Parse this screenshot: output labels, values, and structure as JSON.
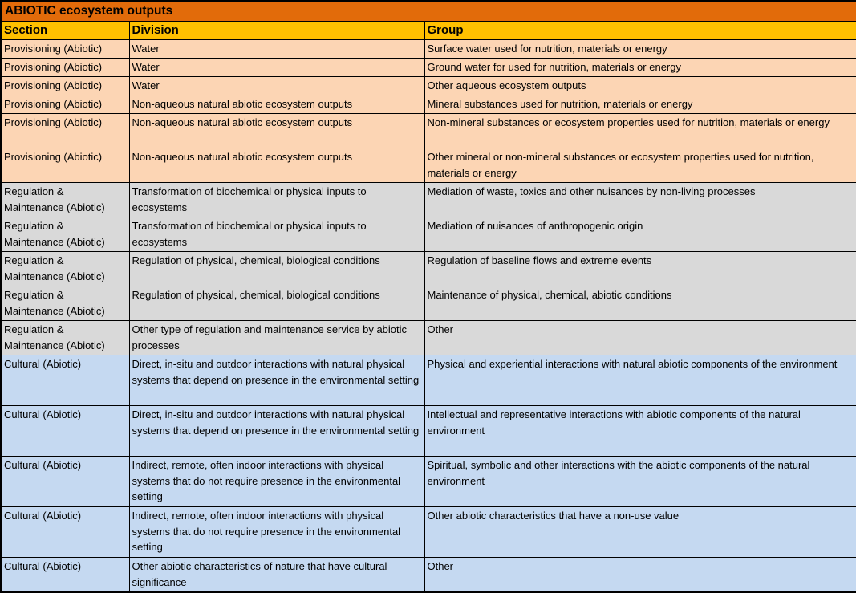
{
  "title": "ABIOTIC ecosystem outputs",
  "columns": [
    "Section",
    "Division",
    "Group"
  ],
  "colors": {
    "title_bg": "#E26B0A",
    "header_bg": "#FFC000",
    "provisioning_bg": "#FCD5B4",
    "regulation_bg": "#D9D9D9",
    "cultural_bg": "#C5D9F1",
    "border": "#000000",
    "text": "#000000"
  },
  "rows": [
    {
      "category": "provisioning",
      "min_lines": 1,
      "section": "Provisioning (Abiotic)",
      "division": "Water",
      "group": "Surface water used for nutrition, materials or energy"
    },
    {
      "category": "provisioning",
      "min_lines": 1,
      "section": "Provisioning (Abiotic)",
      "division": "Water",
      "group": "Ground water for used for nutrition, materials or energy"
    },
    {
      "category": "provisioning",
      "min_lines": 1,
      "section": "Provisioning (Abiotic)",
      "division": "Water",
      "group": "Other aqueous ecosystem outputs"
    },
    {
      "category": "provisioning",
      "min_lines": 1,
      "section": "Provisioning (Abiotic)",
      "division": "Non-aqueous natural abiotic ecosystem outputs",
      "group": "Mineral substances used for nutrition, materials or energy"
    },
    {
      "category": "provisioning",
      "min_lines": 2,
      "section": "Provisioning (Abiotic)",
      "division": "Non-aqueous natural abiotic ecosystem outputs",
      "group": "Non-mineral substances or ecosystem properties used for nutrition, materials or energy"
    },
    {
      "category": "provisioning",
      "min_lines": 2,
      "section": "Provisioning (Abiotic)",
      "division": "Non-aqueous natural abiotic ecosystem outputs",
      "group": "Other mineral or non-mineral substances or ecosystem properties used for nutrition, materials or energy"
    },
    {
      "category": "regulation",
      "min_lines": 2,
      "section": "Regulation & Maintenance (Abiotic)",
      "division": "Transformation of biochemical or physical inputs to ecosystems",
      "group": "Mediation of waste, toxics and other nuisances by non-living processes"
    },
    {
      "category": "regulation",
      "min_lines": 2,
      "section": "Regulation & Maintenance (Abiotic)",
      "division": "Transformation of biochemical or physical inputs to ecosystems",
      "group": "Mediation of nuisances of anthropogenic origin"
    },
    {
      "category": "regulation",
      "min_lines": 2,
      "section": "Regulation & Maintenance (Abiotic)",
      "division": "Regulation of physical, chemical, biological conditions",
      "group": "Regulation of baseline flows and extreme events"
    },
    {
      "category": "regulation",
      "min_lines": 2,
      "section": "Regulation & Maintenance (Abiotic)",
      "division": "Regulation of physical, chemical, biological conditions",
      "group": "Maintenance of physical, chemical, abiotic conditions"
    },
    {
      "category": "regulation",
      "min_lines": 2,
      "section": "Regulation & Maintenance (Abiotic)",
      "division": "Other type of regulation and maintenance service by abiotic processes",
      "group": "Other"
    },
    {
      "category": "cultural",
      "min_lines": 3,
      "section": "Cultural (Abiotic)",
      "division": "Direct, in-situ and outdoor interactions with natural physical systems that depend on presence in the environmental setting",
      "group": "Physical and experiential interactions with natural abiotic components of the environment"
    },
    {
      "category": "cultural",
      "min_lines": 3,
      "section": "Cultural (Abiotic)",
      "division": "Direct, in-situ and outdoor interactions with natural physical systems that depend on presence in the environmental setting",
      "group": "Intellectual and representative interactions with abiotic components of the natural environment"
    },
    {
      "category": "cultural",
      "min_lines": 3,
      "section": "Cultural (Abiotic)",
      "division": "Indirect, remote, often indoor interactions with physical systems that do not require presence in the environmental setting",
      "group": "Spiritual, symbolic and other interactions with the abiotic components of the natural environment"
    },
    {
      "category": "cultural",
      "min_lines": 3,
      "section": "Cultural (Abiotic)",
      "division": "Indirect, remote, often indoor interactions with physical systems that do not require presence in the environmental setting",
      "group": "Other abiotic characteristics that have a non-use value"
    },
    {
      "category": "cultural",
      "min_lines": 2,
      "section": "Cultural (Abiotic)",
      "division": "Other abiotic characteristics of nature that have cultural significance",
      "group": "Other"
    }
  ]
}
